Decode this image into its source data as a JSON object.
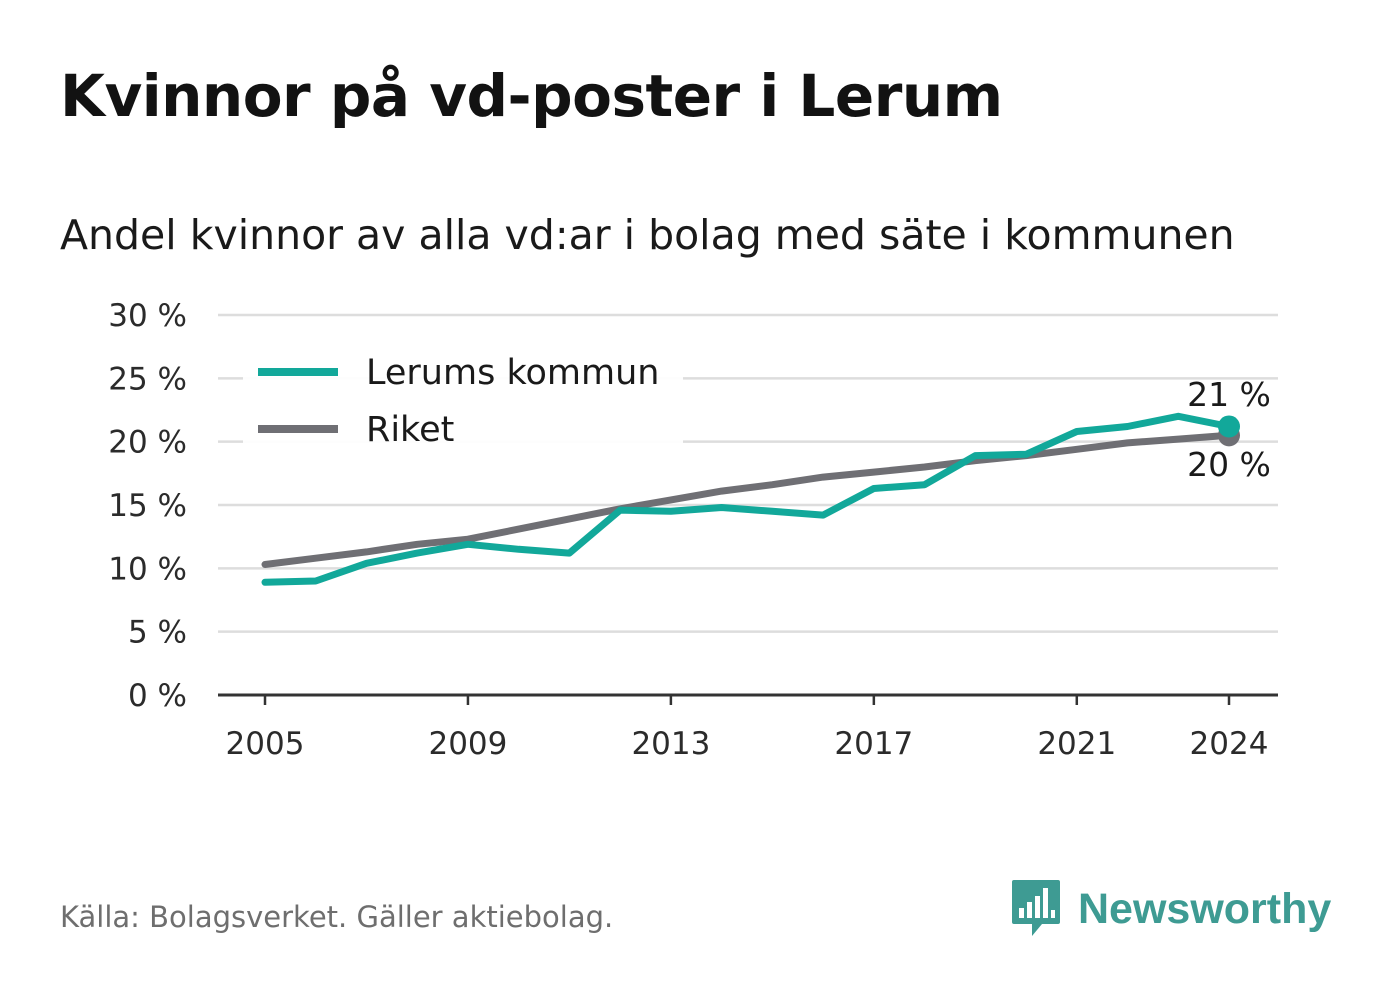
{
  "chart_data": {
    "type": "line",
    "title": "Kvinnor på vd-poster i Lerum",
    "subtitle": "Andel kvinnor av alla vd:ar i bolag med säte i kommunen",
    "x": [
      2005,
      2006,
      2007,
      2008,
      2009,
      2010,
      2011,
      2012,
      2013,
      2014,
      2015,
      2016,
      2017,
      2018,
      2019,
      2020,
      2021,
      2022,
      2023,
      2024
    ],
    "series": [
      {
        "name": "Lerums kommun",
        "color": "#12a89a",
        "values": [
          8.9,
          9.0,
          10.4,
          11.2,
          11.9,
          11.5,
          11.2,
          14.6,
          14.5,
          14.8,
          14.5,
          14.2,
          16.3,
          16.6,
          18.9,
          19.0,
          20.8,
          21.2,
          22.0,
          21.2
        ],
        "end_label": "21 %"
      },
      {
        "name": "Riket",
        "color": "#6f6f74",
        "values": [
          10.3,
          10.8,
          11.3,
          11.9,
          12.3,
          13.1,
          13.9,
          14.7,
          15.4,
          16.1,
          16.6,
          17.2,
          17.6,
          18.0,
          18.5,
          18.9,
          19.4,
          19.9,
          20.2,
          20.5
        ],
        "end_label": "20 %"
      }
    ],
    "ylim": [
      0,
      30
    ],
    "yticks": [
      0,
      5,
      10,
      15,
      20,
      25,
      30
    ],
    "ytick_labels": [
      "0 %",
      "5 %",
      "10 %",
      "15 %",
      "20 %",
      "25 %",
      "30 %"
    ],
    "xticks": [
      2005,
      2009,
      2013,
      2017,
      2021,
      2024
    ],
    "xtick_labels": [
      "2005",
      "2009",
      "2013",
      "2017",
      "2021",
      "2024"
    ],
    "grid": true,
    "legend_position": "top-left"
  },
  "footer": {
    "source": "Källa: Bolagsverket. Gäller aktiebolag.",
    "brand": "Newsworthy"
  },
  "colors": {
    "brand": "#3e9b93",
    "grid": "#dddddd",
    "axis": "#333333"
  },
  "icons": {
    "brand_logo": "bar-chart-speech-bubble-icon"
  }
}
